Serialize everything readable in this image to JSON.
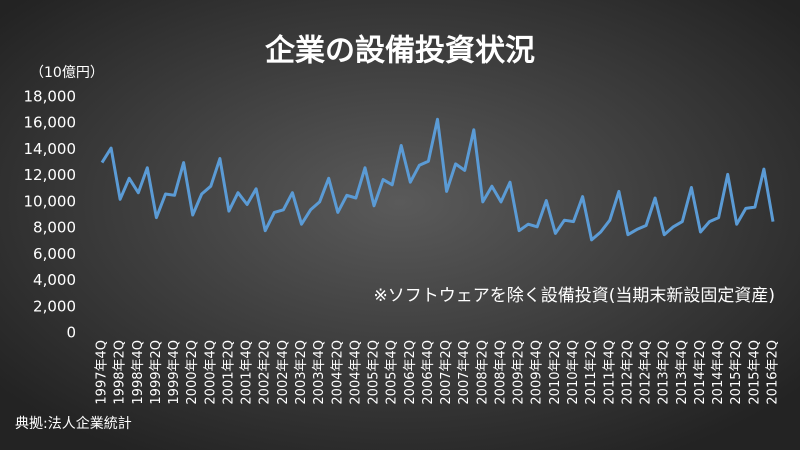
{
  "chart_data": {
    "type": "line",
    "title": "企業の設備投資状況",
    "y_label": "（10億円）",
    "annotation": "※ソフトウェアを除く設備投資(当期末新設固定資産)",
    "source": "典拠:法人企業統計",
    "categories": [
      "1997年4Q",
      null,
      "1998年2Q",
      null,
      "1998年4Q",
      null,
      "1999年2Q",
      null,
      "1999年4Q",
      null,
      "2000年2Q",
      null,
      "2000年4Q",
      null,
      "2001年2Q",
      null,
      "2001年4Q",
      null,
      "2002年2Q",
      null,
      "2002年4Q",
      null,
      "2003年2Q",
      null,
      "2003年4Q",
      null,
      "2004年2Q",
      null,
      "2004年4Q",
      null,
      "2005年2Q",
      null,
      "2005年4Q",
      null,
      "2006年2Q",
      null,
      "2006年4Q",
      null,
      "2007年2Q",
      null,
      "2007年4Q",
      null,
      "2008年2Q",
      null,
      "2008年4Q",
      null,
      "2009年2Q",
      null,
      "2009年4Q",
      null,
      "2010年2Q",
      null,
      "2010年4Q",
      null,
      "2011年2Q",
      null,
      "2011年4Q",
      null,
      "2012年2Q",
      null,
      "2012年4Q",
      null,
      "2013年2Q",
      null,
      "2013年4Q",
      null,
      "2014年2Q",
      null,
      "2014年4Q",
      null,
      "2015年2Q",
      null,
      "2015年4Q",
      null,
      "2016年2Q"
    ],
    "series": [
      {
        "name": "設備投資",
        "color": "#5b9bd5",
        "values": [
          13000,
          14100,
          10200,
          11800,
          10700,
          12600,
          8800,
          10600,
          10500,
          13000,
          9000,
          10600,
          11200,
          13300,
          9300,
          10700,
          9800,
          11000,
          7800,
          9200,
          9400,
          10700,
          8300,
          9400,
          10000,
          11800,
          9200,
          10500,
          10300,
          12600,
          9700,
          11700,
          11300,
          14300,
          11500,
          12800,
          13100,
          16300,
          10800,
          12900,
          12400,
          15500,
          10000,
          11200,
          10000,
          11500,
          7800,
          8300,
          8100,
          10100,
          7600,
          8600,
          8500,
          10400,
          7100,
          7700,
          8600,
          10800,
          7500,
          7900,
          8200,
          10300,
          7500,
          8100,
          8500,
          11100,
          7700,
          8500,
          8800,
          12100,
          8300,
          9500,
          9600,
          12500,
          8500
        ]
      }
    ],
    "ylim": [
      0,
      18000
    ],
    "yticks": [
      0,
      {
        "value": 2000,
        "label": "2,000"
      },
      {
        "value": 4000,
        "label": "4,000"
      },
      {
        "value": 6000,
        "label": "6,000"
      },
      {
        "value": 8000,
        "label": "8,000"
      },
      {
        "value": 10000,
        "label": "10,000"
      },
      {
        "value": 12000,
        "label": "12,000"
      },
      {
        "value": 14000,
        "label": "14,000"
      },
      {
        "value": 16000,
        "label": "16,000"
      },
      {
        "value": 18000,
        "label": "18,000"
      }
    ],
    "grid": false
  }
}
